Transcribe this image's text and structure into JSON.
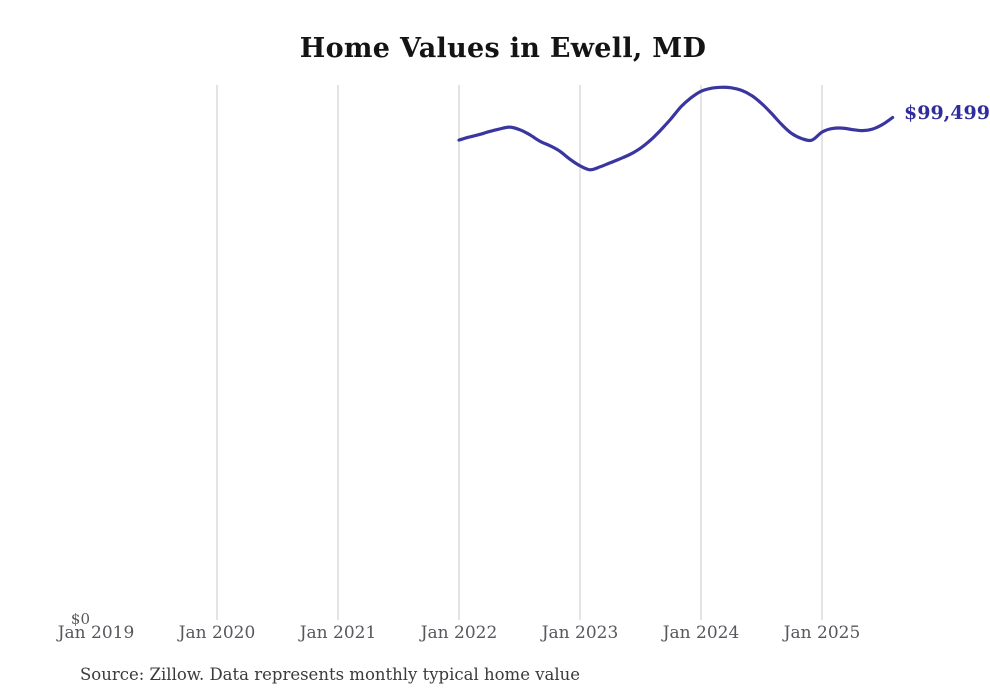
{
  "chart_data": {
    "type": "line",
    "title": "Home Values in Ewell, MD",
    "source_note": "Source: Zillow. Data represents monthly typical home value",
    "ylabel": "",
    "xlabel": "",
    "y_zero_label": "$0",
    "end_value_label": "$99,499",
    "end_value": 99499,
    "x_axis_start": "2019-01",
    "x_ticks": [
      "Jan 2019",
      "Jan 2020",
      "Jan 2021",
      "Jan 2022",
      "Jan 2023",
      "Jan 2024",
      "Jan 2025"
    ],
    "gridlines": {
      "vertical_at": [
        "Jan 2020",
        "Jan 2021",
        "Jan 2022",
        "Jan 2023",
        "Jan 2024",
        "Jan 2025"
      ],
      "horizontal": false
    },
    "ylim": [
      0,
      106000
    ],
    "legend": "none",
    "colors": {
      "line": "#3a36a0",
      "end_label": "#302c9b",
      "gridline": "#c9c9c9",
      "tick_label": "#57575c",
      "title": "#141414",
      "source": "#3b3b3b"
    },
    "series": [
      {
        "name": "Monthly typical home value",
        "x_start_month": "2022-01",
        "x_end_month": "2025-08",
        "months": [
          "Jan 2022",
          "Feb 2022",
          "Mar 2022",
          "Apr 2022",
          "May 2022",
          "Jun 2022",
          "Jul 2022",
          "Aug 2022",
          "Sep 2022",
          "Oct 2022",
          "Nov 2022",
          "Dec 2022",
          "Jan 2023",
          "Feb 2023",
          "Mar 2023",
          "Apr 2023",
          "May 2023",
          "Jun 2023",
          "Jul 2023",
          "Aug 2023",
          "Sep 2023",
          "Oct 2023",
          "Nov 2023",
          "Dec 2023",
          "Jan 2024",
          "Feb 2024",
          "Mar 2024",
          "Apr 2024",
          "May 2024",
          "Jun 2024",
          "Jul 2024",
          "Aug 2024",
          "Sep 2024",
          "Oct 2024",
          "Nov 2024",
          "Dec 2024",
          "Jan 2025",
          "Feb 2025",
          "Mar 2025",
          "Apr 2025",
          "May 2025",
          "Jun 2025",
          "Jul 2025",
          "Aug 2025"
        ],
        "values": [
          95000,
          95600,
          96100,
          96700,
          97200,
          97600,
          97100,
          96100,
          94800,
          93900,
          92800,
          91200,
          89900,
          89100,
          89700,
          90500,
          91300,
          92200,
          93400,
          95000,
          97000,
          99200,
          101600,
          103400,
          104700,
          105300,
          105500,
          105400,
          104900,
          103900,
          102300,
          100300,
          98100,
          96300,
          95300,
          95000,
          96600,
          97300,
          97400,
          97100,
          96900,
          97200,
          98100,
          99499
        ]
      }
    ]
  }
}
